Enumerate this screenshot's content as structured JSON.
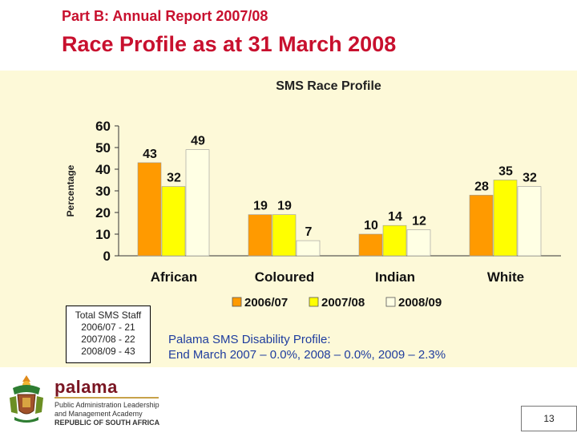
{
  "header": {
    "subtitle": "Part B: Annual Report 2007/08",
    "title": "Race Profile as at 31 March 2008"
  },
  "chart_data": {
    "type": "bar",
    "title": "SMS Race Profile",
    "ylabel": "Percentage",
    "xlabel": "",
    "ylim": [
      0,
      60
    ],
    "yticks": [
      0,
      10,
      20,
      30,
      40,
      50,
      60
    ],
    "categories": [
      "African",
      "Coloured",
      "Indian",
      "White"
    ],
    "series": [
      {
        "name": "2006/07",
        "values": [
          43,
          19,
          10,
          28
        ],
        "color": "#ff9a00"
      },
      {
        "name": "2007/08",
        "values": [
          32,
          19,
          14,
          35
        ],
        "color": "#ffff00"
      },
      {
        "name": "2008/09",
        "values": [
          49,
          7,
          12,
          32
        ],
        "color": "#ffffe4"
      }
    ],
    "legend_position": "bottom"
  },
  "staff_box": {
    "title": "Total SMS Staff",
    "lines": [
      "2006/07 - 21",
      "2007/08 - 22",
      "2008/09 - 43"
    ]
  },
  "disability": {
    "line1": "Palama SMS Disability Profile:",
    "line2": "End March 2007 – 0.0%, 2008 – 0.0%, 2009 – 2.3%"
  },
  "footer": {
    "logo_word": "palama",
    "tagline": [
      "Public Administration Leadership",
      "and Management Academy",
      "REPUBLIC OF SOUTH AFRICA"
    ],
    "page_number": "13"
  },
  "colors": {
    "title_red": "#c8102e",
    "panel_bg": "#fdf9d8",
    "text_blue": "#1f3d9e"
  }
}
